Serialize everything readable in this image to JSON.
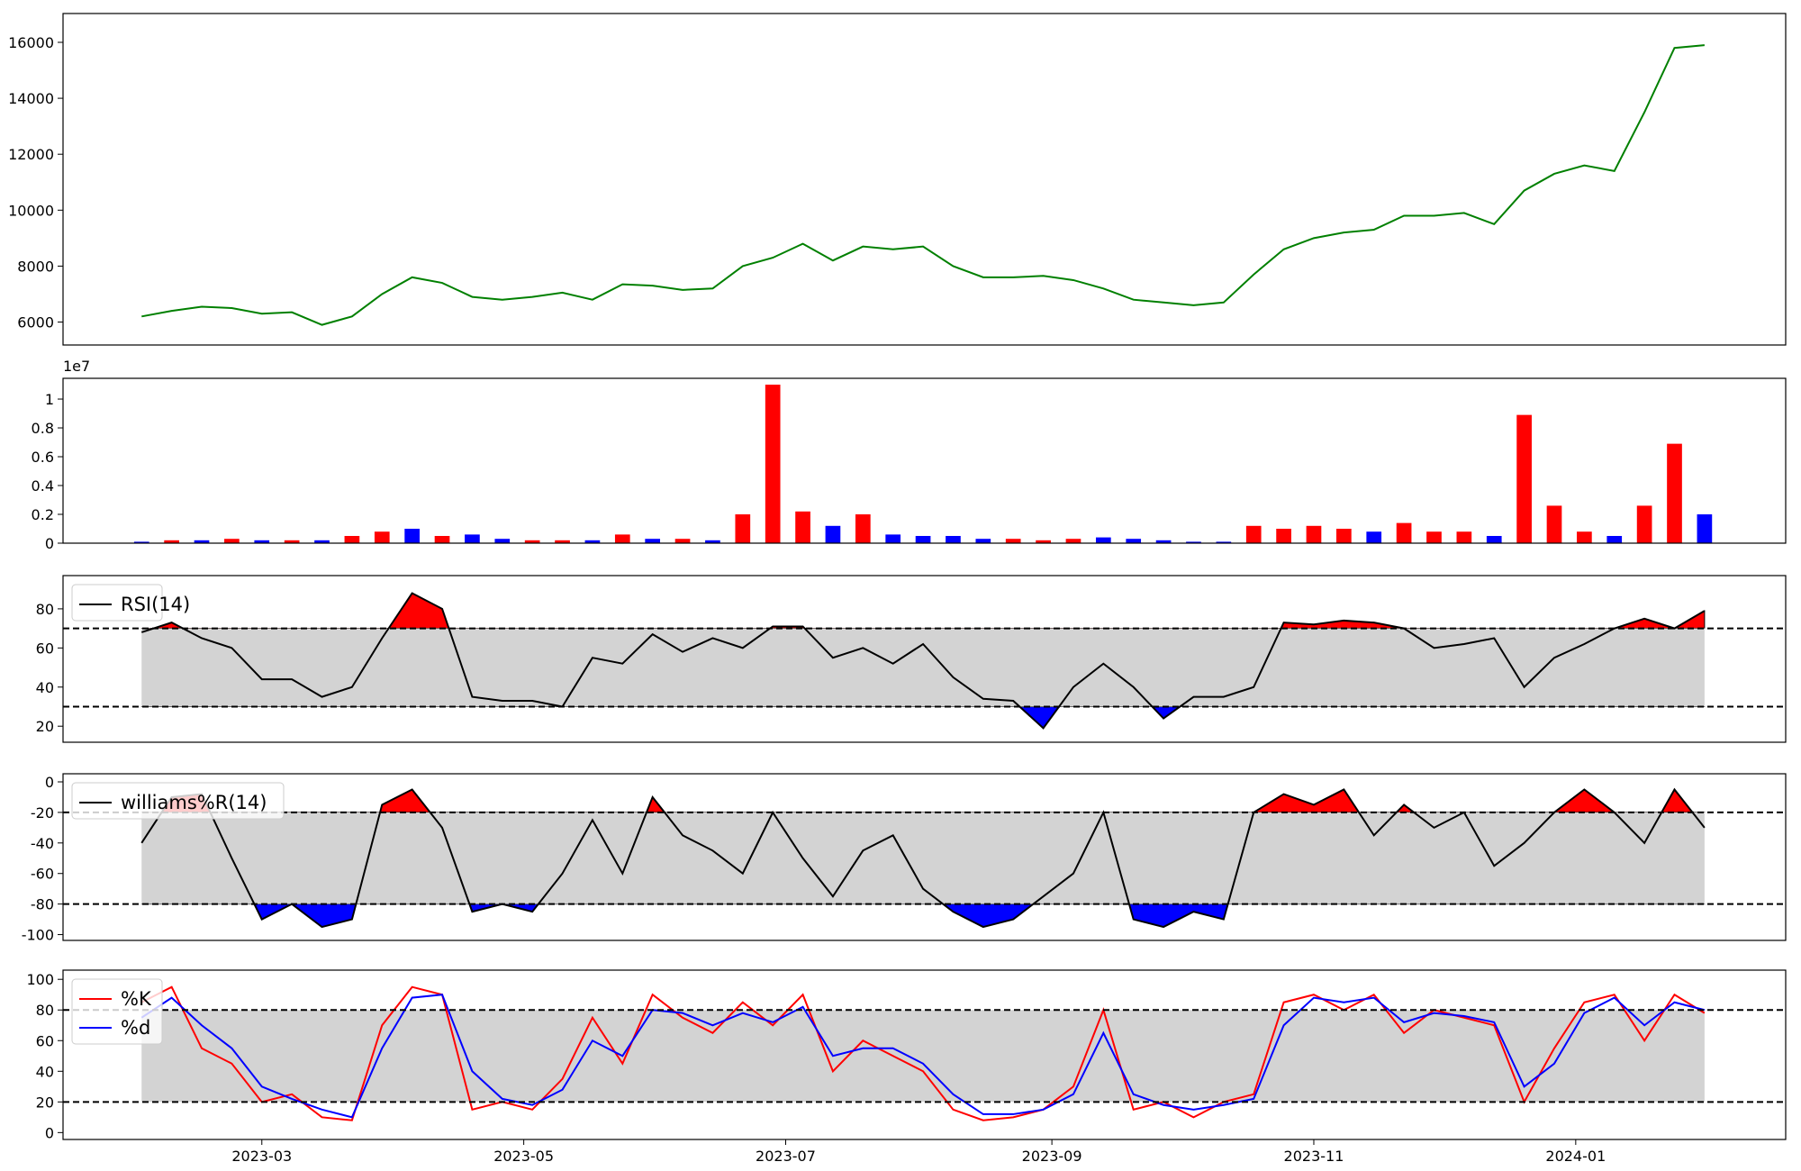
{
  "chart_data": [
    {
      "type": "line",
      "xlim": [
        19370.7,
        19771.9
      ],
      "ylim": [
        5180,
        17030
      ],
      "yticks": [
        6000,
        8000,
        10000,
        12000,
        14000,
        16000
      ],
      "x": [
        19389,
        19396,
        19403,
        19410,
        19417,
        19424,
        19431,
        19438,
        19445,
        19452,
        19459,
        19466,
        19473,
        19480,
        19487,
        19494,
        19501,
        19508,
        19515,
        19522,
        19529,
        19536,
        19543,
        19550,
        19557,
        19564,
        19571,
        19578,
        19585,
        19592,
        19599,
        19606,
        19613,
        19620,
        19627,
        19634,
        19641,
        19648,
        19655,
        19662,
        19669,
        19676,
        19683,
        19690,
        19697,
        19704,
        19711,
        19718,
        19725,
        19732,
        19739,
        19746,
        19753
      ],
      "series": [
        {
          "color": "green",
          "values": [
            6200,
            6400,
            6550,
            6500,
            6300,
            6350,
            5900,
            6200,
            7000,
            7600,
            7400,
            6900,
            6800,
            6900,
            7050,
            6800,
            7350,
            7300,
            7150,
            7200,
            8000,
            8300,
            8800,
            8200,
            8700,
            8600,
            8700,
            8000,
            7600,
            7600,
            7650,
            7500,
            7200,
            6800,
            6700,
            6600,
            6700,
            7700,
            8600,
            9000,
            9200,
            9300,
            9800,
            9800,
            9900,
            9500,
            10700,
            11300,
            11600,
            11400,
            13500,
            15800,
            15900
          ]
        }
      ]
    },
    {
      "type": "bar",
      "offset_label": "1e7",
      "xlim": [
        19370.7,
        19771.9
      ],
      "ylim": [
        0,
        1.144
      ],
      "yticks": [
        0.0,
        0.2,
        0.4,
        0.6,
        0.8,
        1.0
      ],
      "x": [
        19389,
        19396,
        19403,
        19410,
        19417,
        19424,
        19431,
        19438,
        19445,
        19452,
        19459,
        19466,
        19473,
        19480,
        19487,
        19494,
        19501,
        19508,
        19515,
        19522,
        19529,
        19536,
        19543,
        19550,
        19557,
        19564,
        19571,
        19578,
        19585,
        19592,
        19599,
        19606,
        19613,
        19620,
        19627,
        19634,
        19641,
        19648,
        19655,
        19662,
        19669,
        19676,
        19683,
        19690,
        19697,
        19704,
        19711,
        19718,
        19725,
        19732,
        19739,
        19746,
        19753
      ],
      "values": [
        0.01,
        0.02,
        0.02,
        0.03,
        0.02,
        0.02,
        0.02,
        0.05,
        0.08,
        0.1,
        0.05,
        0.06,
        0.03,
        0.02,
        0.02,
        0.02,
        0.06,
        0.03,
        0.03,
        0.02,
        0.2,
        1.1,
        0.22,
        0.12,
        0.2,
        0.06,
        0.05,
        0.05,
        0.03,
        0.03,
        0.02,
        0.03,
        0.04,
        0.03,
        0.02,
        0.01,
        0.01,
        0.12,
        0.1,
        0.12,
        0.1,
        0.08,
        0.14,
        0.08,
        0.08,
        0.05,
        0.89,
        0.26,
        0.08,
        0.05,
        0.26,
        0.69,
        0.2
      ],
      "colors": [
        "blue",
        "red",
        "blue",
        "red",
        "blue",
        "red",
        "blue",
        "red",
        "red",
        "blue",
        "red",
        "blue",
        "blue",
        "red",
        "red",
        "blue",
        "red",
        "blue",
        "red",
        "blue",
        "red",
        "red",
        "red",
        "blue",
        "red",
        "blue",
        "blue",
        "blue",
        "blue",
        "red",
        "red",
        "red",
        "blue",
        "blue",
        "blue",
        "blue",
        "blue",
        "red",
        "red",
        "red",
        "red",
        "blue",
        "red",
        "red",
        "red",
        "blue",
        "red",
        "red",
        "red",
        "blue",
        "red",
        "red",
        "blue"
      ]
    },
    {
      "type": "line",
      "xlim": [
        19370.7,
        19771.9
      ],
      "ylim": [
        11.8,
        97
      ],
      "yticks": [
        20,
        40,
        60,
        80
      ],
      "thresholds": [
        30,
        70
      ],
      "band_color": "lightgray",
      "upper_color": "red",
      "lower_color": "blue",
      "legend": "upper left",
      "x": [
        19389,
        19396,
        19403,
        19410,
        19417,
        19424,
        19431,
        19438,
        19445,
        19452,
        19459,
        19466,
        19473,
        19480,
        19487,
        19494,
        19501,
        19508,
        19515,
        19522,
        19529,
        19536,
        19543,
        19550,
        19557,
        19564,
        19571,
        19578,
        19585,
        19592,
        19599,
        19606,
        19613,
        19620,
        19627,
        19634,
        19641,
        19648,
        19655,
        19662,
        19669,
        19676,
        19683,
        19690,
        19697,
        19704,
        19711,
        19718,
        19725,
        19732,
        19739,
        19746,
        19753
      ],
      "series": [
        {
          "name": "RSI(14)",
          "color": "black",
          "values": [
            68,
            73,
            65,
            60,
            44,
            44,
            35,
            40,
            65,
            88,
            80,
            35,
            33,
            33,
            30,
            55,
            52,
            67,
            58,
            65,
            60,
            71,
            71,
            55,
            60,
            52,
            62,
            45,
            34,
            33,
            19,
            40,
            52,
            40,
            24,
            35,
            35,
            40,
            73,
            72,
            74,
            73,
            70,
            60,
            62,
            65,
            40,
            55,
            62,
            70,
            75,
            70,
            79
          ]
        }
      ]
    },
    {
      "type": "line",
      "xlim": [
        19370.7,
        19771.9
      ],
      "ylim": [
        -103.8,
        5.3
      ],
      "yticks": [
        -100,
        -80,
        -60,
        -40,
        -20,
        0
      ],
      "thresholds": [
        -80,
        -20
      ],
      "band_color": "lightgray",
      "upper_color": "red",
      "lower_color": "blue",
      "legend": "upper left",
      "x": [
        19389,
        19396,
        19403,
        19410,
        19417,
        19424,
        19431,
        19438,
        19445,
        19452,
        19459,
        19466,
        19473,
        19480,
        19487,
        19494,
        19501,
        19508,
        19515,
        19522,
        19529,
        19536,
        19543,
        19550,
        19557,
        19564,
        19571,
        19578,
        19585,
        19592,
        19599,
        19606,
        19613,
        19620,
        19627,
        19634,
        19641,
        19648,
        19655,
        19662,
        19669,
        19676,
        19683,
        19690,
        19697,
        19704,
        19711,
        19718,
        19725,
        19732,
        19739,
        19746,
        19753
      ],
      "series": [
        {
          "name": "williams%R(14)",
          "color": "black",
          "values": [
            -40,
            -10,
            -8,
            -50,
            -90,
            -80,
            -95,
            -90,
            -15,
            -5,
            -30,
            -85,
            -80,
            -85,
            -60,
            -25,
            -60,
            -10,
            -35,
            -45,
            -60,
            -20,
            -50,
            -75,
            -45,
            -35,
            -70,
            -85,
            -95,
            -90,
            -75,
            -60,
            -20,
            -90,
            -95,
            -85,
            -90,
            -20,
            -8,
            -15,
            -5,
            -35,
            -15,
            -30,
            -20,
            -55,
            -40,
            -20,
            -5,
            -20,
            -40,
            -5,
            -30
          ]
        }
      ]
    },
    {
      "type": "line",
      "xlim": [
        19370.7,
        19771.9
      ],
      "ylim": [
        -4.5,
        106
      ],
      "yticks": [
        0,
        20,
        40,
        60,
        80,
        100
      ],
      "thresholds": [
        20,
        80
      ],
      "band_color": "lightgray",
      "legend": "upper left",
      "xticks": [
        {
          "value": 19417,
          "label": "2023-03"
        },
        {
          "value": 19478,
          "label": "2023-05"
        },
        {
          "value": 19539,
          "label": "2023-07"
        },
        {
          "value": 19601,
          "label": "2023-09"
        },
        {
          "value": 19662,
          "label": "2023-11"
        },
        {
          "value": 19723,
          "label": "2024-01"
        }
      ],
      "x": [
        19389,
        19396,
        19403,
        19410,
        19417,
        19424,
        19431,
        19438,
        19445,
        19452,
        19459,
        19466,
        19473,
        19480,
        19487,
        19494,
        19501,
        19508,
        19515,
        19522,
        19529,
        19536,
        19543,
        19550,
        19557,
        19564,
        19571,
        19578,
        19585,
        19592,
        19599,
        19606,
        19613,
        19620,
        19627,
        19634,
        19641,
        19648,
        19655,
        19662,
        19669,
        19676,
        19683,
        19690,
        19697,
        19704,
        19711,
        19718,
        19725,
        19732,
        19739,
        19746,
        19753
      ],
      "series": [
        {
          "name": "%K",
          "color": "red",
          "values": [
            85,
            95,
            55,
            45,
            20,
            25,
            10,
            8,
            70,
            95,
            90,
            15,
            20,
            15,
            35,
            75,
            45,
            90,
            75,
            65,
            85,
            70,
            90,
            40,
            60,
            50,
            40,
            15,
            8,
            10,
            15,
            30,
            80,
            15,
            20,
            10,
            20,
            25,
            85,
            90,
            80,
            90,
            65,
            80,
            75,
            70,
            20,
            55,
            85,
            90,
            60,
            90,
            78
          ]
        },
        {
          "name": "%d",
          "color": "blue",
          "values": [
            75,
            88,
            70,
            55,
            30,
            22,
            15,
            10,
            55,
            88,
            90,
            40,
            22,
            18,
            28,
            60,
            50,
            80,
            78,
            70,
            78,
            72,
            82,
            50,
            55,
            55,
            45,
            25,
            12,
            12,
            15,
            25,
            65,
            25,
            18,
            15,
            18,
            22,
            70,
            88,
            85,
            88,
            72,
            78,
            76,
            72,
            30,
            45,
            78,
            88,
            70,
            85,
            80
          ]
        }
      ]
    }
  ]
}
